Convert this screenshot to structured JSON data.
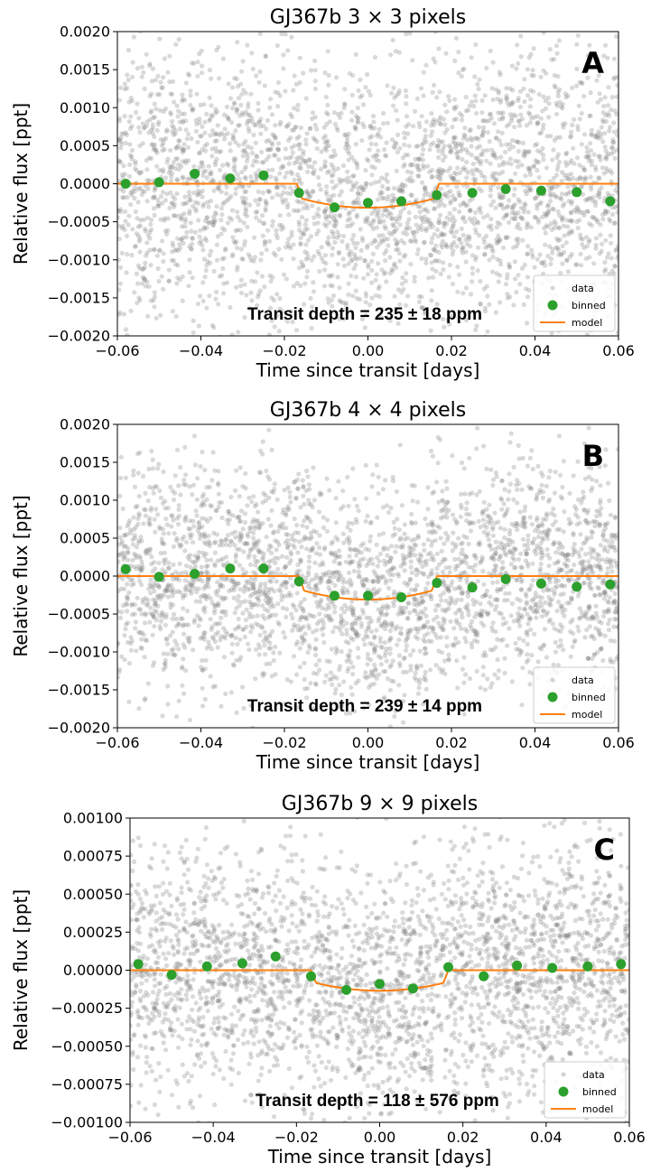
{
  "chart_data": [
    {
      "type": "scatter",
      "panel": "A",
      "title": "GJ367b 3 × 3 pixels",
      "xlabel": "Time since transit [days]",
      "ylabel": "Relative flux [ppt]",
      "xlim": [
        -0.06,
        0.06
      ],
      "ylim": [
        -0.002,
        0.002
      ],
      "xticks": [
        -0.06,
        -0.04,
        -0.02,
        0.0,
        0.02,
        0.04,
        0.06
      ],
      "xtick_labels": [
        "−0.06",
        "−0.04",
        "−0.02",
        "0.00",
        "0.02",
        "0.04",
        "0.06"
      ],
      "yticks": [
        -0.002,
        -0.0015,
        -0.001,
        -0.0005,
        0.0,
        0.0005,
        0.001,
        0.0015,
        0.002
      ],
      "ytick_labels": [
        "−0.0020",
        "−0.0015",
        "−0.0010",
        "−0.0005",
        "0.0000",
        "0.0005",
        "0.0010",
        "0.0015",
        "0.0020"
      ],
      "annotation": "Transit depth = 235 ± 18 ppm",
      "legend_position": "bottom-right",
      "series": [
        {
          "name": "data",
          "kind": "scatter",
          "color": "#808080",
          "noise_sd": 0.0009
        },
        {
          "name": "binned",
          "kind": "points",
          "color": "#2ca02c",
          "x": [
            -0.058,
            -0.05,
            -0.0415,
            -0.033,
            -0.025,
            -0.0165,
            -0.008,
            0.0,
            0.008,
            0.0165,
            0.025,
            0.033,
            0.0415,
            0.05,
            0.058
          ],
          "y": [
            0.0,
            2e-05,
            0.00013,
            7e-05,
            0.00011,
            -0.00012,
            -0.00031,
            -0.00025,
            -0.00023,
            -0.00015,
            -0.00012,
            -7e-05,
            -9e-05,
            -0.00011,
            -0.00023
          ]
        },
        {
          "name": "model",
          "kind": "line",
          "color": "#ff7f0e",
          "depth": 0.000315,
          "half_width": 0.017,
          "ingress": 0.0012
        }
      ]
    },
    {
      "type": "scatter",
      "panel": "B",
      "title": "GJ367b 4 × 4 pixels",
      "xlabel": "Time since transit [days]",
      "ylabel": "Relative flux [ppt]",
      "xlim": [
        -0.06,
        0.06
      ],
      "ylim": [
        -0.002,
        0.002
      ],
      "xticks": [
        -0.06,
        -0.04,
        -0.02,
        0.0,
        0.02,
        0.04,
        0.06
      ],
      "xtick_labels": [
        "−0.06",
        "−0.04",
        "−0.02",
        "0.00",
        "0.02",
        "0.04",
        "0.06"
      ],
      "yticks": [
        -0.002,
        -0.0015,
        -0.001,
        -0.0005,
        0.0,
        0.0005,
        0.001,
        0.0015,
        0.002
      ],
      "ytick_labels": [
        "−0.0020",
        "−0.0015",
        "−0.0010",
        "−0.0005",
        "0.0000",
        "0.0005",
        "0.0010",
        "0.0015",
        "0.0020"
      ],
      "annotation": "Transit depth = 239 ± 14 ppm",
      "legend_position": "bottom-right",
      "series": [
        {
          "name": "data",
          "kind": "scatter",
          "color": "#808080",
          "noise_sd": 0.00075
        },
        {
          "name": "binned",
          "kind": "points",
          "color": "#2ca02c",
          "x": [
            -0.058,
            -0.05,
            -0.0415,
            -0.033,
            -0.025,
            -0.0165,
            -0.008,
            0.0,
            0.008,
            0.0165,
            0.025,
            0.033,
            0.0415,
            0.05,
            0.058
          ],
          "y": [
            9e-05,
            -1e-05,
            3e-05,
            0.0001,
            0.0001,
            -7e-05,
            -0.00026,
            -0.00026,
            -0.00028,
            -9e-05,
            -0.00015,
            -4e-05,
            -0.0001,
            -0.00014,
            -0.00011
          ]
        },
        {
          "name": "model",
          "kind": "line",
          "color": "#ff7f0e",
          "depth": 0.00031,
          "half_width": 0.0165,
          "ingress": 0.0012
        }
      ]
    },
    {
      "type": "scatter",
      "panel": "C",
      "title": "GJ367b 9 × 9 pixels",
      "xlabel": "Time since transit [days]",
      "ylabel": "Relative flux [ppt]",
      "xlim": [
        -0.06,
        0.06
      ],
      "ylim": [
        -0.001,
        0.001
      ],
      "xticks": [
        -0.06,
        -0.04,
        -0.02,
        0.0,
        0.02,
        0.04,
        0.06
      ],
      "xtick_labels": [
        "−0.06",
        "−0.04",
        "−0.02",
        "0.00",
        "0.02",
        "0.04",
        "0.06"
      ],
      "yticks": [
        -0.001,
        -0.00075,
        -0.0005,
        -0.00025,
        0.0,
        0.00025,
        0.0005,
        0.00075,
        0.001
      ],
      "ytick_labels": [
        "−0.00100",
        "−0.00075",
        "−0.00050",
        "−0.00025",
        "0.00000",
        "0.00025",
        "0.00050",
        "0.00075",
        "0.00100"
      ],
      "annotation": "Transit depth = 118 ± 576 ppm",
      "legend_position": "bottom-right",
      "series": [
        {
          "name": "data",
          "kind": "scatter",
          "color": "#808080",
          "noise_sd": 0.00042
        },
        {
          "name": "binned",
          "kind": "points",
          "color": "#2ca02c",
          "x": [
            -0.058,
            -0.05,
            -0.0415,
            -0.033,
            -0.025,
            -0.0165,
            -0.008,
            0.0,
            0.008,
            0.0165,
            0.025,
            0.033,
            0.0415,
            0.05,
            0.058
          ],
          "y": [
            4e-05,
            -3e-05,
            2.5e-05,
            4.5e-05,
            9e-05,
            -4e-05,
            -0.00013,
            -9e-05,
            -0.00012,
            2e-05,
            -4e-05,
            3e-05,
            1.5e-05,
            2.5e-05,
            4e-05
          ]
        },
        {
          "name": "model",
          "kind": "line",
          "color": "#ff7f0e",
          "depth": 0.000135,
          "half_width": 0.0165,
          "ingress": 0.0012
        }
      ]
    }
  ]
}
